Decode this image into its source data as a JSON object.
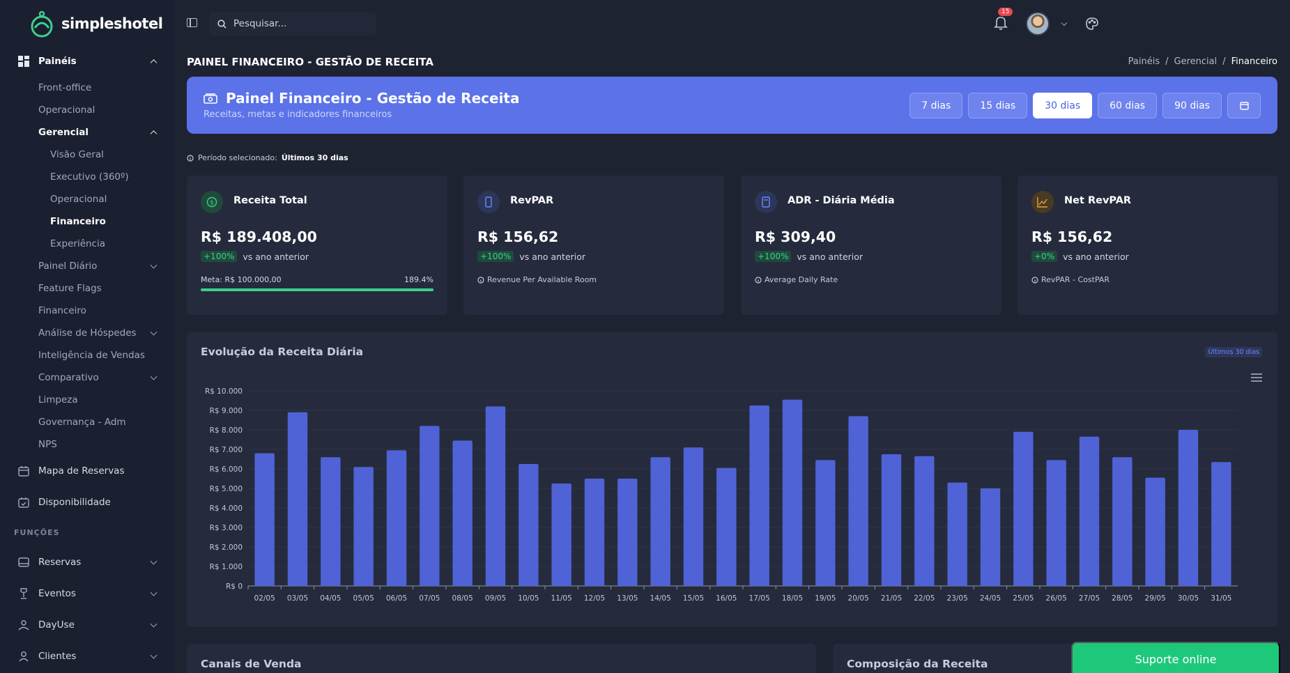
{
  "app": {
    "name": "simpleshotel"
  },
  "sidebar": {
    "items": [
      {
        "label": "Painéis"
      },
      {
        "label": "Front-office"
      },
      {
        "label": "Operacional"
      },
      {
        "label": "Gerencial"
      },
      {
        "label": "Visão Geral"
      },
      {
        "label": "Executivo (360º)"
      },
      {
        "label": "Operacional"
      },
      {
        "label": "Financeiro"
      },
      {
        "label": "Experiência"
      },
      {
        "label": "Painel Diário"
      },
      {
        "label": "Feature Flags"
      },
      {
        "label": "Financeiro"
      },
      {
        "label": "Análise de Hóspedes"
      },
      {
        "label": "Inteligência de Vendas"
      },
      {
        "label": "Comparativo"
      },
      {
        "label": "Limpeza"
      },
      {
        "label": "Governança - Adm"
      },
      {
        "label": "NPS"
      },
      {
        "label": "Mapa de Reservas"
      },
      {
        "label": "Disponibilidade"
      }
    ],
    "section_label": "FUNÇÕES",
    "functions": [
      {
        "label": "Reservas"
      },
      {
        "label": "Eventos"
      },
      {
        "label": "DayUse"
      },
      {
        "label": "Clientes"
      }
    ]
  },
  "topbar": {
    "search_placeholder": "Pesquisar...",
    "notifications": "15"
  },
  "page": {
    "title": "PAINEL FINANCEIRO - GESTÃO DE RECEITA",
    "breadcrumb": [
      "Painéis",
      "/",
      "Gerencial",
      "/",
      "Financeiro"
    ]
  },
  "hero": {
    "title": "Painel Financeiro - Gestão de Receita",
    "subtitle": "Receitas, metas e indicadores financeiros",
    "ranges": [
      "7 dias",
      "15 dias",
      "30 dias",
      "60 dias",
      "90 dias"
    ],
    "active_range": "30 dias"
  },
  "period": {
    "label": "Período selecionado:",
    "value": "Últimos 30 dias"
  },
  "kpis": [
    {
      "title": "Receita Total",
      "value": "R$ 189.408,00",
      "change": "+100%",
      "change_label": "vs ano anterior",
      "goal_label": "Meta: R$ 100.000,00",
      "goal_pct": "189.4%",
      "goal_fill": 1.0,
      "color": "#3ecf8e"
    },
    {
      "title": "RevPAR",
      "value": "R$ 156,62",
      "change": "+100%",
      "change_label": "vs ano anterior",
      "note": "Revenue Per Available Room",
      "color": "#6f86ff"
    },
    {
      "title": "ADR - Diária Média",
      "value": "R$ 309,40",
      "change": "+100%",
      "change_label": "vs ano anterior",
      "note": "Average Daily Rate",
      "color": "#6f86ff"
    },
    {
      "title": "Net RevPAR",
      "value": "R$ 156,62",
      "change": "+0%",
      "change_label": "vs ano anterior",
      "note": "RevPAR - CostPAR",
      "color": "#e0a24a"
    }
  ],
  "chart": {
    "title": "Evolução da Receita Diária",
    "tag": "Últimos 30 dias"
  },
  "chart_data": {
    "type": "bar",
    "categories": [
      "02/05",
      "03/05",
      "04/05",
      "05/05",
      "06/05",
      "07/05",
      "08/05",
      "09/05",
      "10/05",
      "11/05",
      "12/05",
      "13/05",
      "14/05",
      "15/05",
      "16/05",
      "17/05",
      "18/05",
      "19/05",
      "20/05",
      "21/05",
      "22/05",
      "23/05",
      "24/05",
      "25/05",
      "26/05",
      "27/05",
      "28/05",
      "29/05",
      "30/05",
      "31/05"
    ],
    "values": [
      6800,
      8900,
      6600,
      6100,
      6950,
      8200,
      7450,
      9200,
      6250,
      5250,
      5500,
      5500,
      6600,
      7100,
      6050,
      9250,
      9550,
      6450,
      8700,
      6750,
      6650,
      5300,
      5000,
      7900,
      6450,
      7650,
      6600,
      5550,
      8000,
      6350
    ],
    "y_ticks": [
      "R$ 0",
      "R$ 1.000",
      "R$ 2.000",
      "R$ 3.000",
      "R$ 4.000",
      "R$ 5.000",
      "R$ 6.000",
      "R$ 7.000",
      "R$ 8.000",
      "R$ 9.000",
      "R$ 10.000"
    ],
    "ylim": [
      0,
      10000
    ],
    "grid": true,
    "color": "#4f63d6"
  },
  "bottom": {
    "channels_title": "Canais de Venda",
    "composition_title": "Composição da Receita"
  },
  "support": {
    "label": "Suporte online"
  }
}
